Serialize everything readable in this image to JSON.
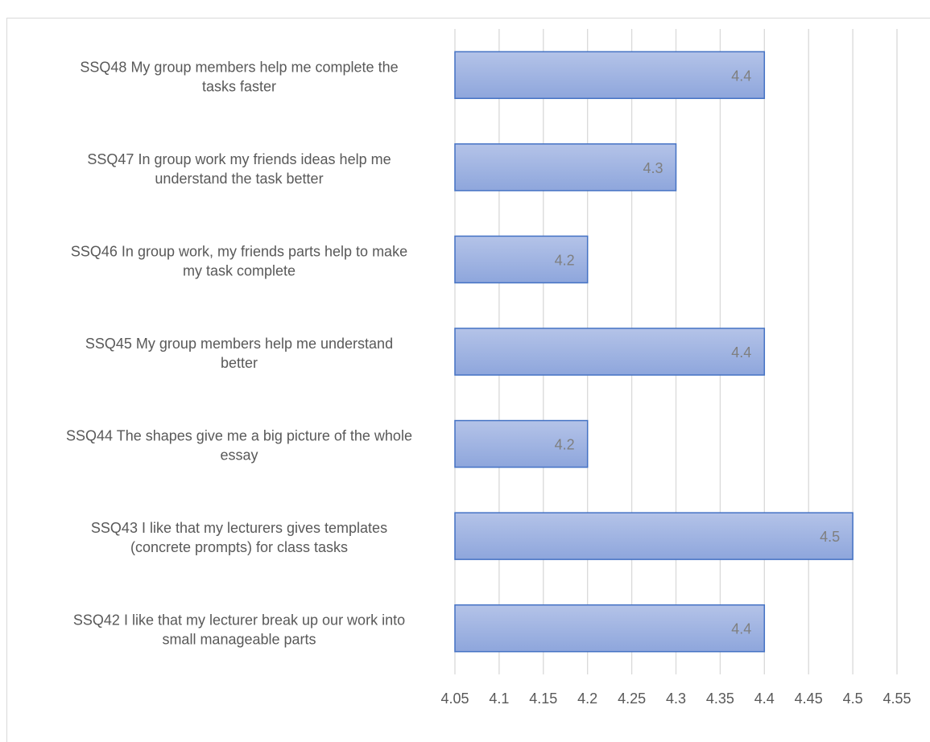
{
  "chart_data": {
    "type": "bar",
    "orientation": "horizontal",
    "title": "",
    "xlabel": "",
    "ylabel": "",
    "xlim": [
      4.05,
      4.55
    ],
    "x_ticks": [
      "4.05",
      "4.1",
      "4.15",
      "4.2",
      "4.25",
      "4.3",
      "4.35",
      "4.4",
      "4.45",
      "4.5",
      "4.55"
    ],
    "grid": true,
    "legend": "none",
    "bar_color": "#9fb3e0",
    "bar_border_color": "#4472c4",
    "categories": [
      [
        "SSQ48 My group members help me complete the",
        "tasks faster"
      ],
      [
        "SSQ47 In group work my friends ideas help me",
        "understand the task better"
      ],
      [
        "SSQ46 In group work, my friends parts help to make",
        "my task complete"
      ],
      [
        "SSQ45 My group members help me understand",
        "better"
      ],
      [
        "SSQ44 The shapes give me a big picture of the whole",
        "essay"
      ],
      [
        "SSQ43 I like that my lecturers gives templates",
        "(concrete prompts) for class tasks"
      ],
      [
        "SSQ42 I like that my lecturer break up our work into",
        "small manageable parts"
      ]
    ],
    "values": [
      4.4,
      4.3,
      4.2,
      4.4,
      4.2,
      4.5,
      4.4
    ],
    "data_labels": [
      "4.4",
      "4.3",
      "4.2",
      "4.4",
      "4.2",
      "4.5",
      "4.4"
    ]
  }
}
